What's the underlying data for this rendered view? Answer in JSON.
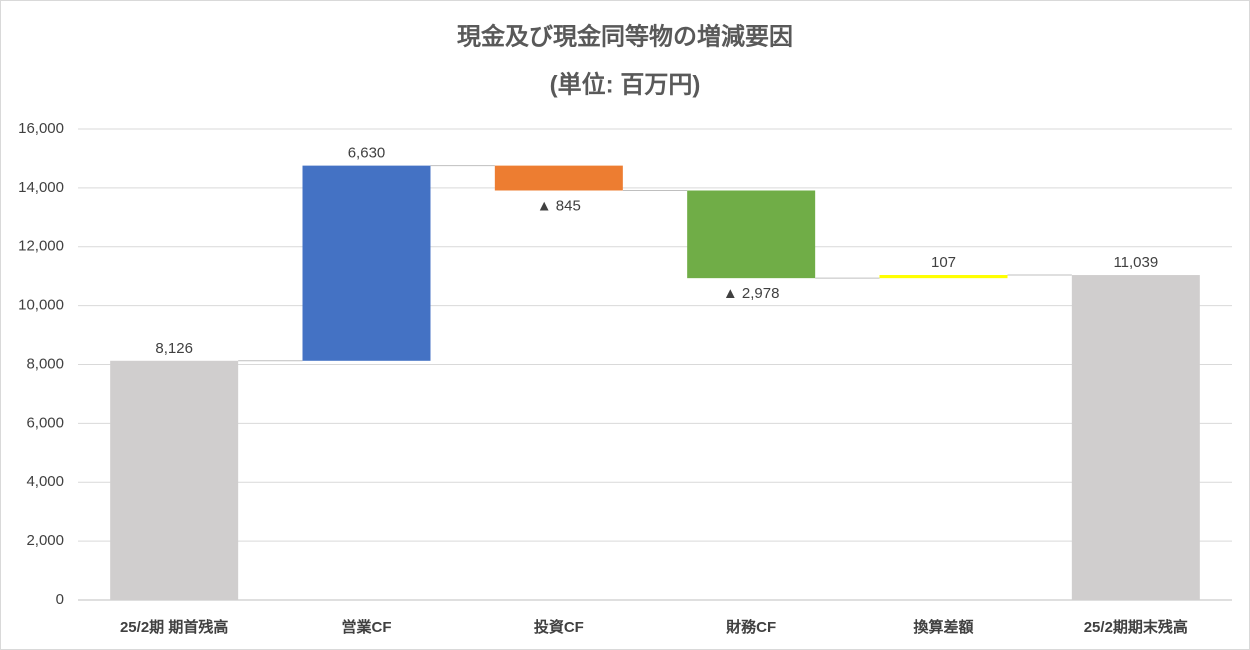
{
  "chart_data": {
    "type": "waterfall",
    "title": "現金及び現金同等物の増減要因",
    "subtitle": "(単位: 百万円)",
    "categories": [
      "25/2期 期首残高",
      "営業CF",
      "投資CF",
      "財務CF",
      "換算差額",
      "25/2期期末残高"
    ],
    "values": [
      8126,
      6630,
      -845,
      -2978,
      107,
      11039
    ],
    "value_labels": [
      "8,126",
      "6,630",
      "▲ 845",
      "▲ 2,978",
      "107",
      "11,039"
    ],
    "measures": [
      "total",
      "relative",
      "relative",
      "relative",
      "relative",
      "total"
    ],
    "colors": [
      "#d0cece",
      "#4472c4",
      "#ed7d31",
      "#70ad47",
      "#ffff00",
      "#d0cece"
    ],
    "ylim": [
      0,
      16000
    ],
    "yticks": [
      0,
      {
        "value": 2000,
        "label": "2,000"
      },
      {
        "value": 4000,
        "label": "4,000"
      },
      {
        "value": 6000,
        "label": "6,000"
      },
      {
        "value": 8000,
        "label": "8,000"
      },
      {
        "value": 10000,
        "label": "10,000"
      },
      {
        "value": 12000,
        "label": "12,000"
      },
      {
        "value": 14000,
        "label": "14,000"
      },
      {
        "value": 16000,
        "label": "16,000"
      }
    ],
    "grid": true
  }
}
